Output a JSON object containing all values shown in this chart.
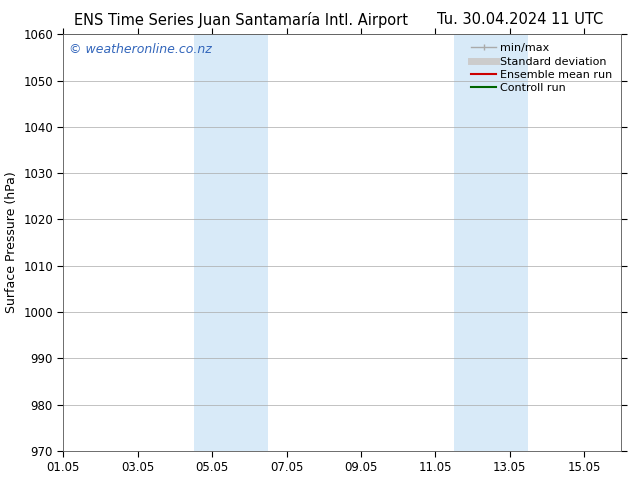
{
  "title_left": "ENS Time Series Juan Santamaría Intl. Airport",
  "title_right": "Tu. 30.04.2024 11 UTC",
  "ylabel": "Surface Pressure (hPa)",
  "ylim": [
    970,
    1060
  ],
  "yticks": [
    970,
    980,
    990,
    1000,
    1010,
    1020,
    1030,
    1040,
    1050,
    1060
  ],
  "xlim": [
    0,
    15
  ],
  "xtick_labels": [
    "01.05",
    "03.05",
    "05.05",
    "07.05",
    "09.05",
    "11.05",
    "13.05",
    "15.05"
  ],
  "xtick_positions": [
    0,
    2,
    4,
    6,
    8,
    10,
    12,
    14
  ],
  "shaded_bands": [
    {
      "x_start": 3.5,
      "x_end": 5.5,
      "color": "#d8eaf8"
    },
    {
      "x_start": 10.5,
      "x_end": 12.5,
      "color": "#d8eaf8"
    }
  ],
  "watermark_text": "© weatheronline.co.nz",
  "watermark_color": "#3366bb",
  "legend_items": [
    {
      "label": "min/max",
      "color": "#aaaaaa",
      "lw": 1.0
    },
    {
      "label": "Standard deviation",
      "color": "#cccccc",
      "lw": 5
    },
    {
      "label": "Ensemble mean run",
      "color": "#cc0000",
      "lw": 1.5
    },
    {
      "label": "Controll run",
      "color": "#006600",
      "lw": 1.5
    }
  ],
  "bg_color": "#ffffff",
  "plot_bg_color": "#ffffff",
  "grid_color": "#aaaaaa",
  "title_fontsize": 10.5,
  "axis_label_fontsize": 9,
  "tick_fontsize": 8.5,
  "watermark_fontsize": 9,
  "legend_fontsize": 8
}
